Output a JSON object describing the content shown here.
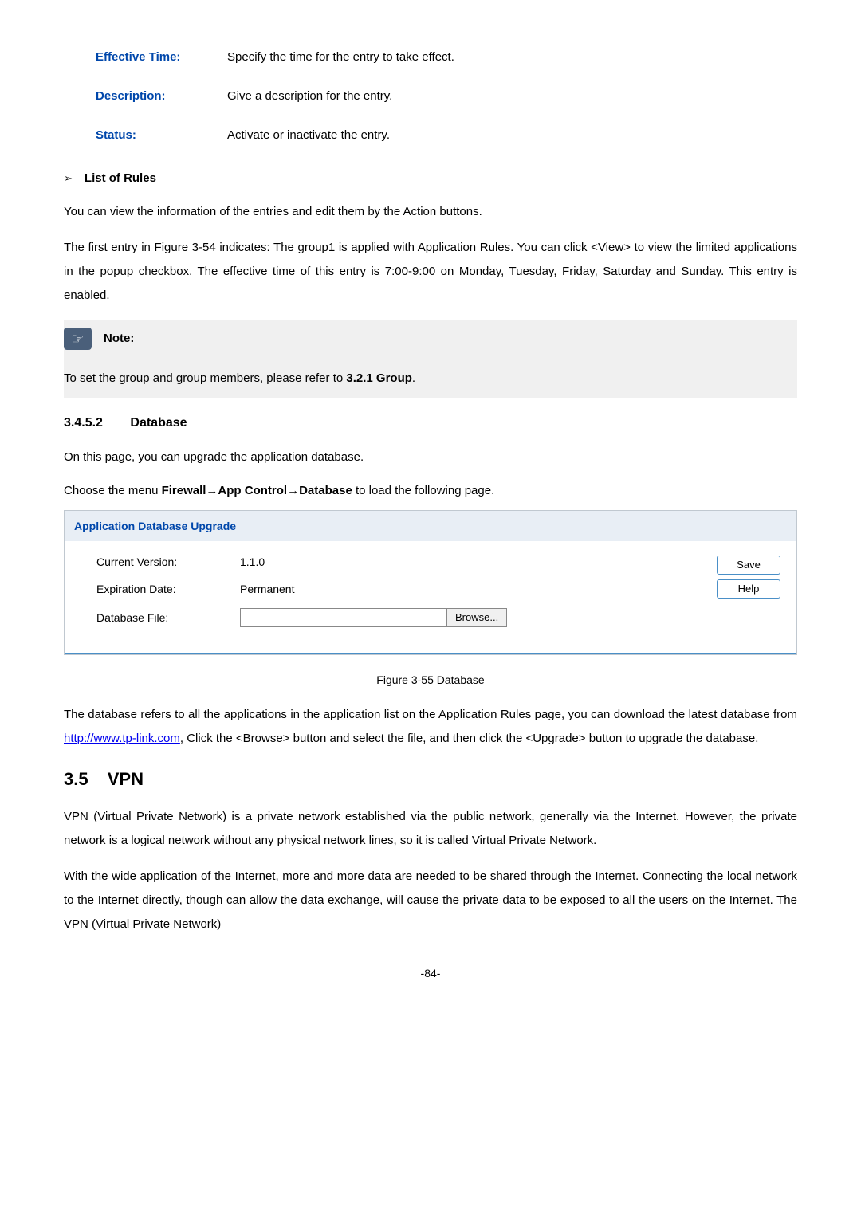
{
  "definitions": [
    {
      "label": "Effective Time:",
      "value": "Specify the time for the entry to take effect."
    },
    {
      "label": "Description:",
      "value": "Give a description for the entry."
    },
    {
      "label": "Status:",
      "value": "Activate or inactivate the entry."
    }
  ],
  "list_rules": {
    "title": "List of Rules",
    "para1": "You can view the information of the entries and edit them by the Action buttons.",
    "para2": "The first entry in Figure 3-54 indicates: The group1 is applied with Application Rules. You can click <View> to view the limited applications in the popup checkbox. The effective time of this entry is 7:00-9:00 on Monday, Tuesday, Friday, Saturday and Sunday. This entry is enabled."
  },
  "note": {
    "label": "Note:",
    "text_prefix": "To set the group and group members, please refer to ",
    "text_bold": "3.2.1 Group",
    "text_suffix": "."
  },
  "database": {
    "heading_num": "3.4.5.2",
    "heading_title": "Database",
    "para1": "On this page, you can upgrade the application database.",
    "menu_prefix": "Choose the menu ",
    "menu_bold": "Firewall→App Control→Database",
    "menu_suffix": " to load the following page."
  },
  "upgrade_panel": {
    "title": "Application Database Upgrade",
    "current_version_label": "Current Version:",
    "current_version_value": "1.1.0",
    "expiration_label": "Expiration Date:",
    "expiration_value": "Permanent",
    "file_label": "Database File:",
    "browse_btn": "Browse...",
    "save_btn": "Save",
    "help_btn": "Help",
    "colors": {
      "header_bg": "#e8eef5",
      "header_text": "#0047ab",
      "border": "#c0c8d0",
      "bottom_border": "#4a8fc7",
      "button_border": "#4a8fc7"
    }
  },
  "figure_caption": "Figure 3-55 Database",
  "database_para": {
    "prefix": "The database refers to all the applications in the application list on the Application Rules page, you can download the latest database from ",
    "link": "http://www.tp-link.com",
    "suffix": ", Click the <Browse> button and select the file, and then click the <Upgrade> button to upgrade the database."
  },
  "vpn": {
    "heading_num": "3.5",
    "heading_title": "VPN",
    "para1": "VPN (Virtual Private Network) is a private network established via the public network, generally via the Internet. However, the private network is a logical network without any physical network lines, so it is called Virtual Private Network.",
    "para2": "With the wide application of the Internet, more and more data are needed to be shared through the Internet. Connecting the local network to the Internet directly, though can allow the data exchange, will cause the private data to be exposed to all the users on the Internet. The VPN (Virtual Private Network)"
  },
  "page_number": "-84-"
}
